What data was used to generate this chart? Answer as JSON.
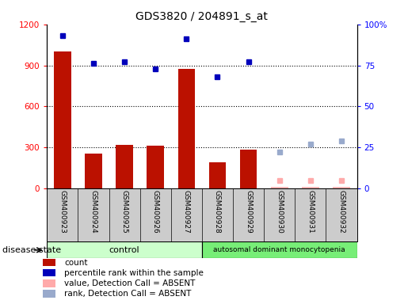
{
  "title": "GDS3820 / 204891_s_at",
  "samples": [
    "GSM400923",
    "GSM400924",
    "GSM400925",
    "GSM400926",
    "GSM400927",
    "GSM400928",
    "GSM400929",
    "GSM400930",
    "GSM400931",
    "GSM400932"
  ],
  "count_values": [
    1000,
    255,
    320,
    315,
    875,
    190,
    285,
    10,
    10,
    10
  ],
  "count_absent": [
    false,
    false,
    false,
    false,
    false,
    false,
    false,
    true,
    true,
    true
  ],
  "percentile_values": [
    93,
    76,
    77,
    73,
    91,
    68,
    77,
    null,
    null,
    null
  ],
  "absent_rank_values": [
    null,
    null,
    null,
    null,
    null,
    null,
    null,
    22,
    27,
    29
  ],
  "absent_value_values": [
    null,
    null,
    null,
    null,
    null,
    null,
    null,
    5,
    5,
    5
  ],
  "ylim_left": [
    0,
    1200
  ],
  "ylim_right": [
    0,
    100
  ],
  "yticks_left": [
    0,
    300,
    600,
    900,
    1200
  ],
  "yticks_right": [
    0,
    25,
    50,
    75,
    100
  ],
  "yticklabels_right": [
    "0",
    "25",
    "50",
    "75",
    "100%"
  ],
  "bar_color": "#bb1100",
  "bar_absent_color": "#ffbbbb",
  "dot_color": "#0000bb",
  "dot_absent_rank_color": "#99aacc",
  "dot_absent_value_color": "#ffaaaa",
  "grid_color": "#000000",
  "sample_bg_color": "#cccccc",
  "control_bg": "#ccffcc",
  "disease_bg": "#77ee77",
  "n_control": 5,
  "n_disease": 5,
  "legend_items": [
    {
      "label": "count",
      "color": "#bb1100"
    },
    {
      "label": "percentile rank within the sample",
      "color": "#0000bb"
    },
    {
      "label": "value, Detection Call = ABSENT",
      "color": "#ffaaaa"
    },
    {
      "label": "rank, Detection Call = ABSENT",
      "color": "#99aacc"
    }
  ]
}
